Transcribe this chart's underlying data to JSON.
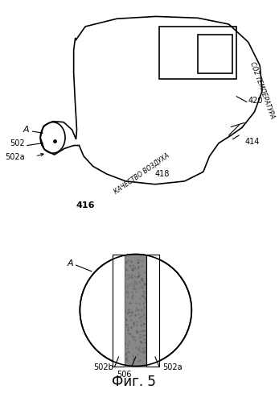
{
  "title": "Фиг. 5",
  "title_fontsize": 12,
  "bg_color": "#ffffff",
  "line_color": "#000000",
  "label_fontsize": 7,
  "label_color": "#000000",
  "labels": {
    "A_top": "A",
    "502": "502",
    "502a_top": "502a",
    "416": "416",
    "418": "418",
    "420": "420",
    "414": "414",
    "air_quality": "КАЧЕСТВО ВОЗДУХА",
    "co2_temp": "CO2 ТЕМПЕРАТУРА",
    "A_bottom": "A",
    "502b": "502b",
    "506": "506",
    "502a_bottom": "502a"
  }
}
